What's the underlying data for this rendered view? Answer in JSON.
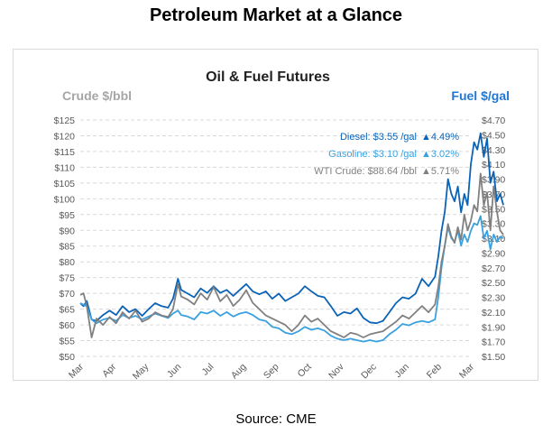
{
  "page": {
    "title": "Petroleum Market at a Glance",
    "source": "Source: CME"
  },
  "chart_data": {
    "type": "line",
    "title": "Oil & Fuel Futures",
    "left_axis": {
      "label": "Crude $/bbl",
      "ylim": [
        50,
        125
      ],
      "ticks": [
        50,
        55,
        60,
        65,
        70,
        75,
        80,
        85,
        90,
        95,
        100,
        105,
        110,
        115,
        120,
        125
      ],
      "tick_labels": [
        "$50",
        "$55",
        "$60",
        "$65",
        "$70",
        "$75",
        "$80",
        "$85",
        "$90",
        "$95",
        "$100",
        "$105",
        "$110",
        "$115",
        "$120",
        "$125"
      ],
      "color": "#a6a6a6"
    },
    "right_axis": {
      "label": "Fuel $/gal",
      "ylim": [
        1.5,
        4.7
      ],
      "ticks": [
        1.5,
        1.7,
        1.9,
        2.1,
        2.3,
        2.5,
        2.7,
        2.9,
        3.1,
        3.3,
        3.5,
        3.7,
        3.9,
        4.1,
        4.3,
        4.5,
        4.7
      ],
      "tick_labels": [
        "$1.50",
        "$1.70",
        "$1.90",
        "$2.10",
        "$2.30",
        "$2.50",
        "$2.70",
        "$2.90",
        "$3.10",
        "$3.30",
        "$3.50",
        "$3.70",
        "$3.90",
        "$4.10",
        "$4.30",
        "$4.50",
        "$4.70"
      ],
      "color": "#1f77d4"
    },
    "x_categories": [
      "Mar",
      "Apr",
      "May",
      "Jun",
      "Jul",
      "Aug",
      "Sep",
      "Oct",
      "Nov",
      "Dec",
      "Jan",
      "Feb",
      "Mar"
    ],
    "grid": true,
    "legend_placement": "top-right",
    "series": [
      {
        "name": "Diesel:",
        "axis": "right",
        "color": "#0b63b6",
        "legend_value": "$3.55 /gal",
        "legend_change": "▲4.49%",
        "values": [
          [
            0,
            2.22
          ],
          [
            0.1,
            2.18
          ],
          [
            0.2,
            2.25
          ],
          [
            0.35,
            2.0
          ],
          [
            0.5,
            1.98
          ],
          [
            0.7,
            2.06
          ],
          [
            0.9,
            2.12
          ],
          [
            1.1,
            2.06
          ],
          [
            1.3,
            2.18
          ],
          [
            1.5,
            2.1
          ],
          [
            1.7,
            2.14
          ],
          [
            1.9,
            2.05
          ],
          [
            2.1,
            2.14
          ],
          [
            2.3,
            2.22
          ],
          [
            2.5,
            2.18
          ],
          [
            2.7,
            2.16
          ],
          [
            2.85,
            2.28
          ],
          [
            3.0,
            2.55
          ],
          [
            3.1,
            2.4
          ],
          [
            3.3,
            2.35
          ],
          [
            3.5,
            2.3
          ],
          [
            3.7,
            2.42
          ],
          [
            3.9,
            2.36
          ],
          [
            4.1,
            2.45
          ],
          [
            4.3,
            2.36
          ],
          [
            4.5,
            2.4
          ],
          [
            4.7,
            2.32
          ],
          [
            4.9,
            2.4
          ],
          [
            5.1,
            2.48
          ],
          [
            5.3,
            2.38
          ],
          [
            5.5,
            2.34
          ],
          [
            5.7,
            2.38
          ],
          [
            5.9,
            2.28
          ],
          [
            6.1,
            2.35
          ],
          [
            6.3,
            2.25
          ],
          [
            6.5,
            2.3
          ],
          [
            6.7,
            2.35
          ],
          [
            6.9,
            2.45
          ],
          [
            7.1,
            2.38
          ],
          [
            7.3,
            2.32
          ],
          [
            7.5,
            2.3
          ],
          [
            7.7,
            2.18
          ],
          [
            7.9,
            2.05
          ],
          [
            8.1,
            2.1
          ],
          [
            8.3,
            2.08
          ],
          [
            8.5,
            2.15
          ],
          [
            8.7,
            2.02
          ],
          [
            8.9,
            1.96
          ],
          [
            9.1,
            1.95
          ],
          [
            9.3,
            1.98
          ],
          [
            9.5,
            2.1
          ],
          [
            9.7,
            2.22
          ],
          [
            9.9,
            2.3
          ],
          [
            10.1,
            2.28
          ],
          [
            10.3,
            2.35
          ],
          [
            10.5,
            2.55
          ],
          [
            10.7,
            2.45
          ],
          [
            10.9,
            2.58
          ],
          [
            11.0,
            2.85
          ],
          [
            11.1,
            3.2
          ],
          [
            11.2,
            3.45
          ],
          [
            11.3,
            3.9
          ],
          [
            11.4,
            3.7
          ],
          [
            11.5,
            3.6
          ],
          [
            11.6,
            3.8
          ],
          [
            11.7,
            3.45
          ],
          [
            11.8,
            3.7
          ],
          [
            11.9,
            3.55
          ],
          [
            12.0,
            4.1
          ],
          [
            12.1,
            4.4
          ],
          [
            12.2,
            4.3
          ],
          [
            12.3,
            4.52
          ],
          [
            12.4,
            4.2
          ],
          [
            12.5,
            4.45
          ],
          [
            12.6,
            3.85
          ],
          [
            12.7,
            4.0
          ],
          [
            12.8,
            3.6
          ],
          [
            12.9,
            3.7
          ],
          [
            13.0,
            3.55
          ]
        ]
      },
      {
        "name": "Gasoline:",
        "axis": "right",
        "color": "#3aa0e0",
        "legend_value": "$3.10 /gal",
        "legend_change": "▲3.02%",
        "values": [
          [
            0,
            2.22
          ],
          [
            0.1,
            2.2
          ],
          [
            0.2,
            2.18
          ],
          [
            0.35,
            2.0
          ],
          [
            0.5,
            1.95
          ],
          [
            0.7,
            2.0
          ],
          [
            0.9,
            2.02
          ],
          [
            1.1,
            1.98
          ],
          [
            1.3,
            2.06
          ],
          [
            1.5,
            2.02
          ],
          [
            1.7,
            2.05
          ],
          [
            1.9,
            2.0
          ],
          [
            2.1,
            2.04
          ],
          [
            2.3,
            2.08
          ],
          [
            2.5,
            2.05
          ],
          [
            2.7,
            2.02
          ],
          [
            2.85,
            2.08
          ],
          [
            3.0,
            2.12
          ],
          [
            3.1,
            2.06
          ],
          [
            3.3,
            2.04
          ],
          [
            3.5,
            2.0
          ],
          [
            3.7,
            2.1
          ],
          [
            3.9,
            2.08
          ],
          [
            4.1,
            2.12
          ],
          [
            4.3,
            2.05
          ],
          [
            4.5,
            2.1
          ],
          [
            4.7,
            2.04
          ],
          [
            4.9,
            2.08
          ],
          [
            5.1,
            2.1
          ],
          [
            5.3,
            2.06
          ],
          [
            5.5,
            2.0
          ],
          [
            5.7,
            1.98
          ],
          [
            5.9,
            1.9
          ],
          [
            6.1,
            1.88
          ],
          [
            6.3,
            1.82
          ],
          [
            6.5,
            1.8
          ],
          [
            6.7,
            1.84
          ],
          [
            6.9,
            1.9
          ],
          [
            7.1,
            1.86
          ],
          [
            7.3,
            1.88
          ],
          [
            7.5,
            1.85
          ],
          [
            7.7,
            1.78
          ],
          [
            7.9,
            1.74
          ],
          [
            8.1,
            1.72
          ],
          [
            8.3,
            1.74
          ],
          [
            8.5,
            1.72
          ],
          [
            8.7,
            1.7
          ],
          [
            8.9,
            1.72
          ],
          [
            9.1,
            1.7
          ],
          [
            9.3,
            1.72
          ],
          [
            9.5,
            1.8
          ],
          [
            9.7,
            1.86
          ],
          [
            9.9,
            1.94
          ],
          [
            10.1,
            1.92
          ],
          [
            10.3,
            1.96
          ],
          [
            10.5,
            1.98
          ],
          [
            10.7,
            1.96
          ],
          [
            10.9,
            2.0
          ],
          [
            11.0,
            2.3
          ],
          [
            11.1,
            2.7
          ],
          [
            11.2,
            3.0
          ],
          [
            11.3,
            3.25
          ],
          [
            11.4,
            3.1
          ],
          [
            11.5,
            3.05
          ],
          [
            11.6,
            3.2
          ],
          [
            11.7,
            3.0
          ],
          [
            11.8,
            3.15
          ],
          [
            11.9,
            3.05
          ],
          [
            12.0,
            3.2
          ],
          [
            12.1,
            3.3
          ],
          [
            12.2,
            3.28
          ],
          [
            12.3,
            3.4
          ],
          [
            12.4,
            3.1
          ],
          [
            12.5,
            3.2
          ],
          [
            12.6,
            2.95
          ],
          [
            12.7,
            3.15
          ],
          [
            12.8,
            3.05
          ],
          [
            12.9,
            3.12
          ],
          [
            13.0,
            3.1
          ]
        ]
      },
      {
        "name": "WTI Crude:",
        "axis": "left",
        "color": "#808080",
        "legend_value": "$88.64 /bbl",
        "legend_change": "▲5.71%",
        "values": [
          [
            0,
            69.5
          ],
          [
            0.1,
            70.0
          ],
          [
            0.2,
            66.0
          ],
          [
            0.35,
            56.0
          ],
          [
            0.5,
            62.0
          ],
          [
            0.7,
            60.0
          ],
          [
            0.9,
            62.5
          ],
          [
            1.1,
            60.5
          ],
          [
            1.3,
            64.0
          ],
          [
            1.5,
            62.0
          ],
          [
            1.7,
            64.5
          ],
          [
            1.9,
            61.0
          ],
          [
            2.1,
            62.0
          ],
          [
            2.3,
            64.0
          ],
          [
            2.5,
            63.0
          ],
          [
            2.7,
            62.5
          ],
          [
            2.85,
            65.0
          ],
          [
            3.0,
            73.0
          ],
          [
            3.1,
            69.0
          ],
          [
            3.3,
            68.0
          ],
          [
            3.5,
            66.5
          ],
          [
            3.7,
            70.0
          ],
          [
            3.9,
            68.0
          ],
          [
            4.1,
            72.0
          ],
          [
            4.3,
            67.5
          ],
          [
            4.5,
            69.5
          ],
          [
            4.7,
            66.0
          ],
          [
            4.9,
            68.0
          ],
          [
            5.1,
            71.0
          ],
          [
            5.3,
            67.0
          ],
          [
            5.5,
            65.0
          ],
          [
            5.7,
            63.0
          ],
          [
            5.9,
            62.0
          ],
          [
            6.1,
            61.0
          ],
          [
            6.3,
            60.0
          ],
          [
            6.5,
            58.0
          ],
          [
            6.7,
            60.0
          ],
          [
            6.9,
            63.0
          ],
          [
            7.1,
            61.0
          ],
          [
            7.3,
            62.0
          ],
          [
            7.5,
            60.0
          ],
          [
            7.7,
            58.0
          ],
          [
            7.9,
            57.0
          ],
          [
            8.1,
            56.0
          ],
          [
            8.3,
            57.5
          ],
          [
            8.5,
            57.0
          ],
          [
            8.7,
            56.0
          ],
          [
            8.9,
            57.0
          ],
          [
            9.1,
            57.5
          ],
          [
            9.3,
            58.0
          ],
          [
            9.5,
            59.5
          ],
          [
            9.7,
            61.0
          ],
          [
            9.9,
            63.0
          ],
          [
            10.1,
            62.0
          ],
          [
            10.3,
            64.0
          ],
          [
            10.5,
            66.0
          ],
          [
            10.7,
            64.0
          ],
          [
            10.9,
            66.5
          ],
          [
            11.0,
            72.0
          ],
          [
            11.1,
            80.0
          ],
          [
            11.2,
            85.0
          ],
          [
            11.3,
            92.0
          ],
          [
            11.4,
            88.0
          ],
          [
            11.5,
            86.0
          ],
          [
            11.6,
            91.0
          ],
          [
            11.7,
            87.0
          ],
          [
            11.8,
            95.0
          ],
          [
            11.9,
            90.0
          ],
          [
            12.0,
            93.0
          ],
          [
            12.1,
            98.0
          ],
          [
            12.2,
            96.0
          ],
          [
            12.3,
            108.0
          ],
          [
            12.4,
            98.0
          ],
          [
            12.5,
            102.0
          ],
          [
            12.6,
            90.0
          ],
          [
            12.7,
            104.0
          ],
          [
            12.8,
            96.0
          ],
          [
            12.9,
            90.0
          ],
          [
            13.0,
            88.6
          ]
        ]
      }
    ]
  }
}
